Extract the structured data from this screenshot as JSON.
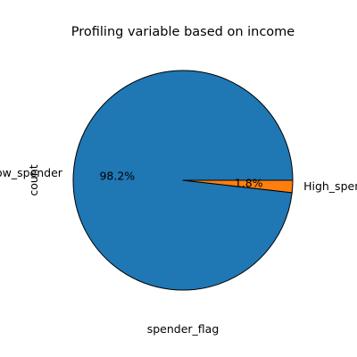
{
  "chart_data": {
    "type": "pie",
    "title": "Profiling variable based on income",
    "xlabel": "spender_flag",
    "ylabel": "count",
    "categories": [
      "Low_spender",
      "High_spender"
    ],
    "values": [
      98.2,
      1.8
    ],
    "value_labels": [
      "98.2%",
      "1.8%"
    ],
    "colors": [
      "#1f77b4",
      "#ff7f0e"
    ],
    "edge_color": "#000000",
    "start_angle_deg": 0,
    "direction": "counterclockwise"
  }
}
